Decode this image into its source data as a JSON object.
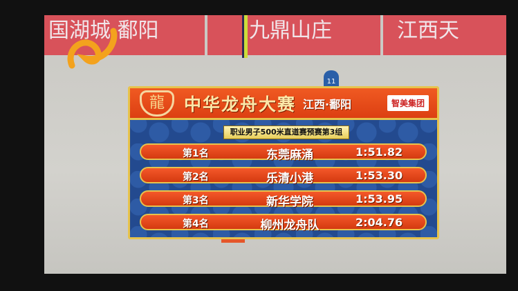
{
  "background_banners": [
    "国湖城·鄱阳",
    "九鼎山庄",
    "江西天"
  ],
  "lane_marker": "11",
  "scoreboard": {
    "title": "中华龙舟大赛",
    "location": "江西·鄱阳",
    "sponsor": "智美集团",
    "event": "职业男子500米直道赛预赛第3组",
    "results": [
      {
        "rank": "第1名",
        "team": "东莞麻涌",
        "time": "1:51.82"
      },
      {
        "rank": "第2名",
        "team": "乐清小港",
        "time": "1:53.30"
      },
      {
        "rank": "第3名",
        "team": "新华学院",
        "time": "1:53.95"
      },
      {
        "rank": "第4名",
        "team": "柳州龙舟队",
        "time": "2:04.76"
      }
    ]
  },
  "colors": {
    "header": "#e8481a",
    "panel": "#234a8f",
    "gold": "#e7c34c"
  }
}
